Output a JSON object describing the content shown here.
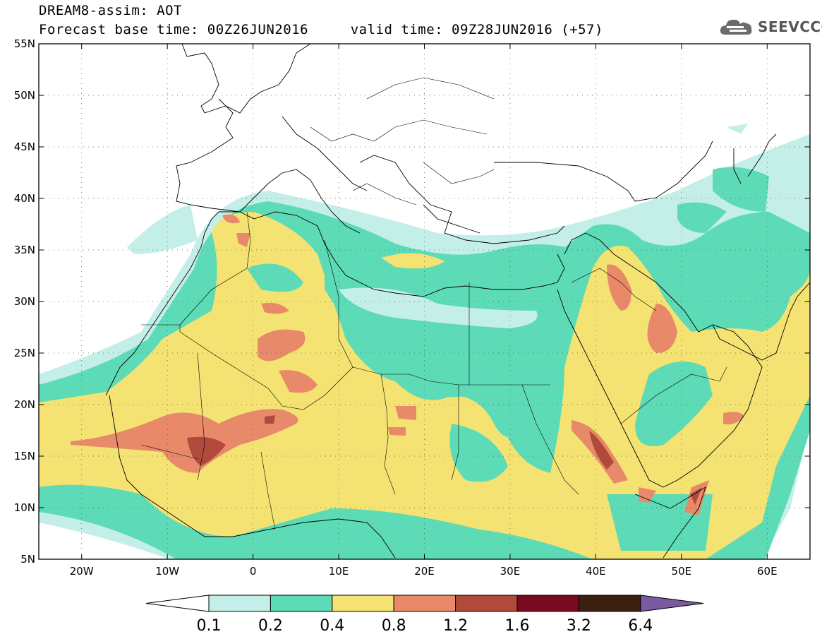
{
  "title": {
    "line1": "DREAM8-assim: AOT",
    "line2": "Forecast base time: 00Z26JUN2016     valid time: 09Z28JUN2016 (+57)"
  },
  "logo": {
    "text": "SEEVCCC",
    "icon": "cloud-icon"
  },
  "map": {
    "lon_range": [
      -25,
      65
    ],
    "lat_range": [
      5,
      55
    ],
    "lat_ticks": [
      {
        "value": 55,
        "label": "55N"
      },
      {
        "value": 50,
        "label": "50N"
      },
      {
        "value": 45,
        "label": "45N"
      },
      {
        "value": 40,
        "label": "40N"
      },
      {
        "value": 35,
        "label": "35N"
      },
      {
        "value": 30,
        "label": "30N"
      },
      {
        "value": 25,
        "label": "25N"
      },
      {
        "value": 20,
        "label": "20N"
      },
      {
        "value": 15,
        "label": "15N"
      },
      {
        "value": 10,
        "label": "10N"
      },
      {
        "value": 5,
        "label": "5N"
      }
    ],
    "lon_ticks": [
      {
        "value": -20,
        "label": "20W"
      },
      {
        "value": -10,
        "label": "10W"
      },
      {
        "value": 0,
        "label": "0"
      },
      {
        "value": 10,
        "label": "10E"
      },
      {
        "value": 20,
        "label": "20E"
      },
      {
        "value": 30,
        "label": "30E"
      },
      {
        "value": 40,
        "label": "40E"
      },
      {
        "value": 50,
        "label": "50E"
      },
      {
        "value": 60,
        "label": "60E"
      }
    ],
    "grid": true
  },
  "colorbar": {
    "levels": [
      "0.1",
      "0.2",
      "0.4",
      "0.8",
      "1.2",
      "1.6",
      "3.2",
      "6.4"
    ],
    "colors": [
      "#ffffff",
      "#c4efe8",
      "#5ddbb6",
      "#f4e372",
      "#e88a6a",
      "#b24a3c",
      "#7a0a22",
      "#3b2012",
      "#7c5aa0"
    ]
  }
}
